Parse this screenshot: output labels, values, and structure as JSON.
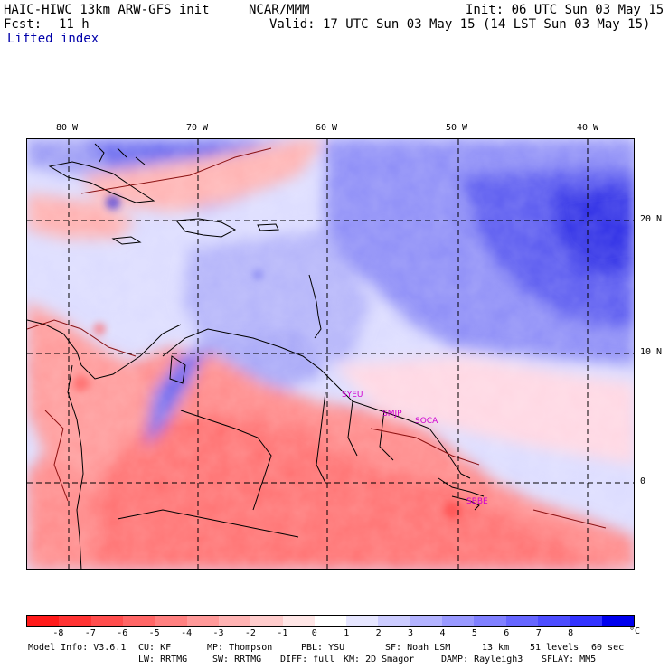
{
  "header": {
    "model_title": "HAIC-HIWC 13km ARW-GFS init",
    "org": "NCAR/MMM",
    "init": "Init: 06 UTC Sun 03 May 15",
    "fcst_label": "Fcst:",
    "fcst_value": "11 h",
    "valid": "Valid: 17 UTC Sun 03 May 15 (14 LST Sun 03 May 15)",
    "field": "Lifted index"
  },
  "map": {
    "lon_labels": [
      "80 W",
      "70 W",
      "60 W",
      "50 W",
      "40 W"
    ],
    "lat_labels": [
      "20 N",
      "10 N",
      "0"
    ],
    "stations": [
      "SYEU",
      "SMJP",
      "SOCA",
      "SBBE"
    ]
  },
  "colorbar": {
    "ticks": [
      "-8",
      "-7",
      "-6",
      "-5",
      "-4",
      "-3",
      "-2",
      "-1",
      "0",
      "1",
      "2",
      "3",
      "4",
      "5",
      "6",
      "7",
      "8"
    ],
    "unit": "°C",
    "colors": [
      "#ff1a1a",
      "#ff3333",
      "#ff4d4d",
      "#ff6666",
      "#ff8080",
      "#ff9999",
      "#ffb3b3",
      "#ffcccc",
      "#ffe6e6",
      "#ffffff",
      "#e6e6ff",
      "#ccccff",
      "#b3b3ff",
      "#9999ff",
      "#8080ff",
      "#6666ff",
      "#4d4dff",
      "#3333ff",
      "#0000ee"
    ]
  },
  "footer": {
    "model_info": "Model Info: V3.6.1",
    "cu": "CU: KF",
    "mp": "MP: Thompson",
    "pbl": "PBL: YSU",
    "sf": "SF: Noah LSM",
    "res": "13 km",
    "levels": "51 levels",
    "dt": "60 sec",
    "lw": "LW: RRTMG",
    "sw": "SW: RRTMG",
    "diff": "DIFF: full",
    "km": "KM: 2D Smagor",
    "damp": "DAMP: Rayleigh3",
    "sflay": "SFLAY: MM5"
  }
}
